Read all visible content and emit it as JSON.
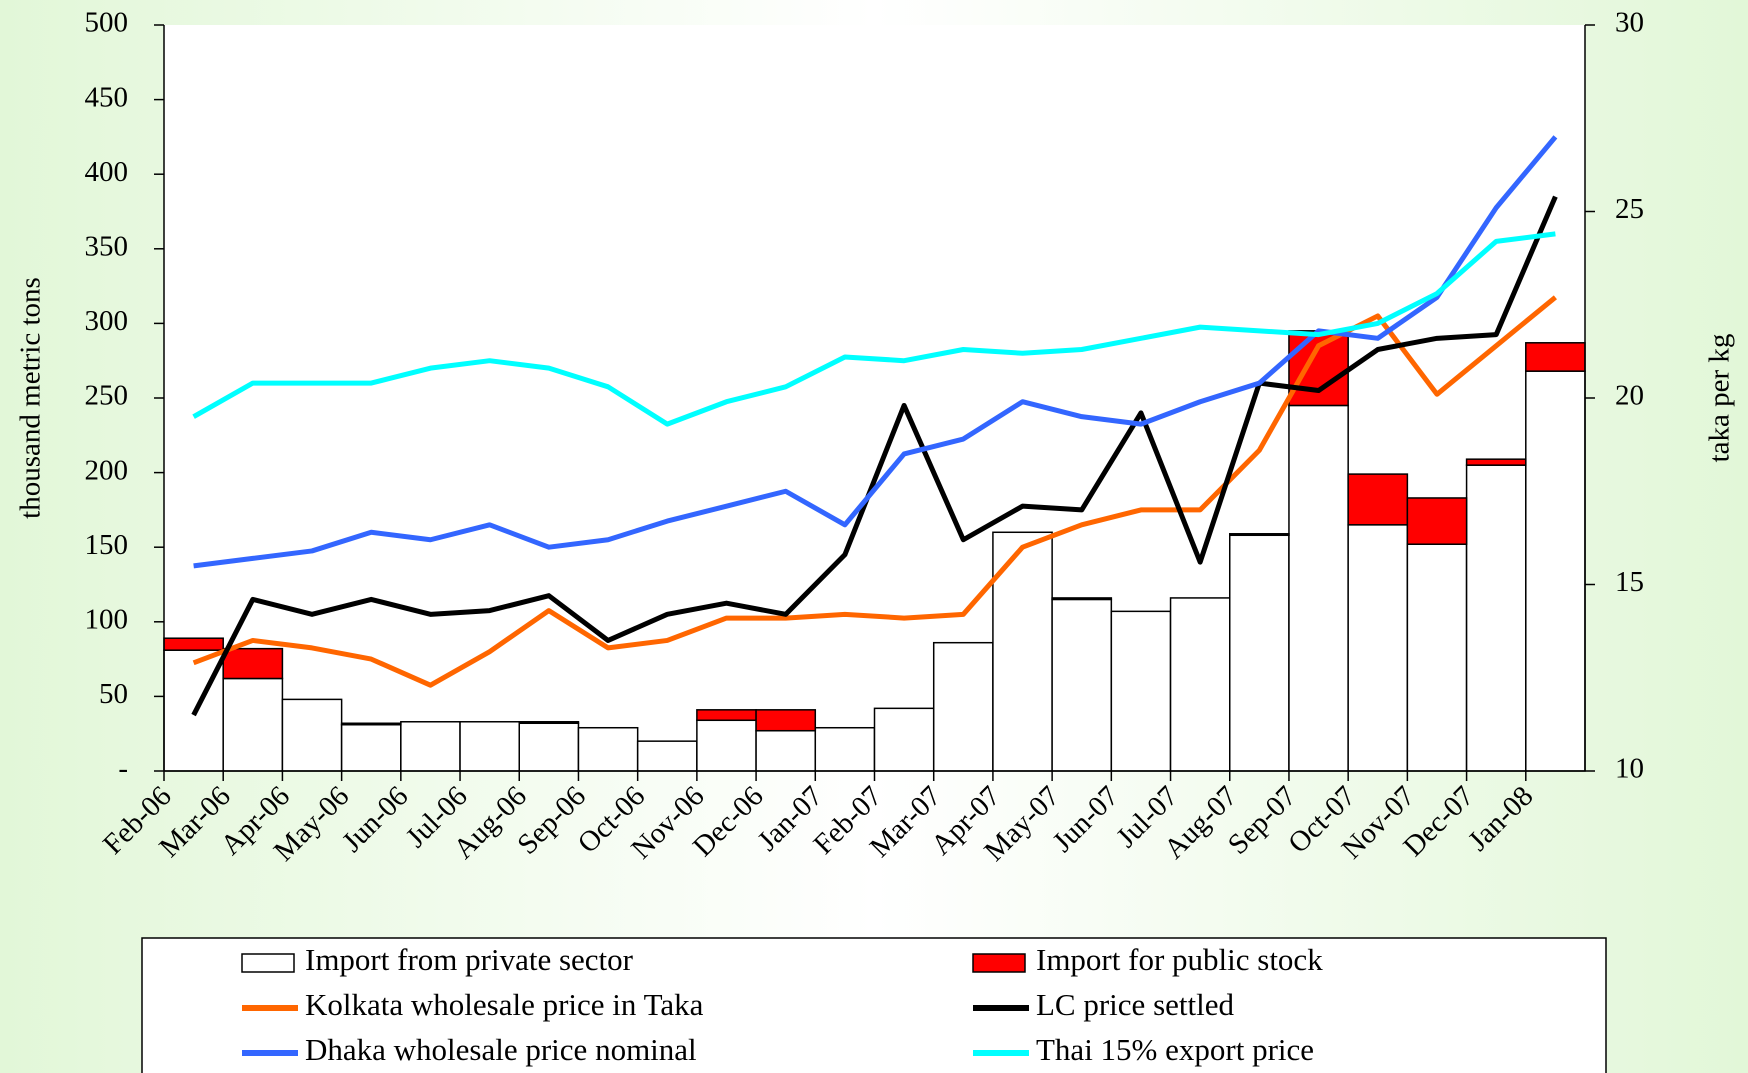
{
  "chart_data": {
    "type": "bar",
    "stacked": true,
    "categories": [
      "Feb-06",
      "Mar-06",
      "Apr-06",
      "May-06",
      "Jun-06",
      "Jul-06",
      "Aug-06",
      "Sep-06",
      "Oct-06",
      "Nov-06",
      "Dec-06",
      "Jan-07",
      "Feb-07",
      "Mar-07",
      "Apr-07",
      "May-07",
      "Jun-07",
      "Jul-07",
      "Aug-07",
      "Sep-07",
      "Oct-07",
      "Nov-07",
      "Dec-07",
      "Jan-08"
    ],
    "ylabel": "thousand metric tons",
    "y2label": "taka per kg",
    "ylim": [
      0,
      500
    ],
    "yticks": [
      {
        "value": 0,
        "label": "-"
      },
      50,
      100,
      150,
      200,
      250,
      300,
      350,
      400,
      450,
      500
    ],
    "y2lim": [
      10,
      30
    ],
    "y2ticks": [
      10,
      15,
      20,
      25,
      30
    ],
    "series": [
      {
        "name": "Import from private sector",
        "type": "bar",
        "color": "#ffffff",
        "values": [
          81,
          62,
          48,
          31,
          33,
          33,
          32,
          29,
          20,
          34,
          27,
          29,
          42,
          86,
          160,
          115,
          107,
          116,
          158,
          245,
          165,
          152,
          205,
          268
        ]
      },
      {
        "name": "Import for public stock",
        "type": "bar",
        "color": "#ff0000",
        "values": [
          8,
          20,
          0,
          1,
          0,
          0,
          1,
          0,
          0,
          7,
          14,
          0,
          0,
          0,
          0,
          1,
          0,
          0,
          1,
          50,
          34,
          31,
          4,
          19
        ]
      },
      {
        "name": "Kolkata wholesale price in Taka",
        "type": "line",
        "axis": "y2",
        "color": "#ff6600",
        "values": [
          12.9,
          13.5,
          13.3,
          13.0,
          12.3,
          13.2,
          14.3,
          13.3,
          13.5,
          14.1,
          14.1,
          14.2,
          14.1,
          14.2,
          16.0,
          16.6,
          17.0,
          17.0,
          18.6,
          21.4,
          22.2,
          20.1,
          21.4,
          22.7
        ]
      },
      {
        "name": "LC price settled",
        "type": "line",
        "axis": "y2",
        "color": "#000000",
        "values": [
          11.5,
          14.6,
          14.2,
          14.6,
          14.2,
          14.3,
          14.7,
          13.5,
          14.2,
          14.5,
          14.2,
          15.8,
          19.8,
          16.2,
          17.1,
          17.0,
          19.6,
          15.6,
          20.4,
          20.2,
          21.3,
          21.6,
          21.7,
          25.4
        ]
      },
      {
        "name": "Dhaka wholesale price nominal",
        "type": "line",
        "axis": "y2",
        "color": "#3366ff",
        "values": [
          15.5,
          15.7,
          15.9,
          16.4,
          16.2,
          16.6,
          16.0,
          16.2,
          16.7,
          17.1,
          17.5,
          16.6,
          18.5,
          18.9,
          19.9,
          19.5,
          19.3,
          19.9,
          20.4,
          21.8,
          21.6,
          22.7,
          25.1,
          27.0
        ]
      },
      {
        "name": "Thai 15% export price",
        "type": "line",
        "axis": "y2",
        "color": "#00ffff",
        "values": [
          19.5,
          20.4,
          20.4,
          20.4,
          20.8,
          21.0,
          20.8,
          20.3,
          19.3,
          19.9,
          20.3,
          21.1,
          21.0,
          21.3,
          21.2,
          21.3,
          21.6,
          21.9,
          21.8,
          21.7,
          22.0,
          22.8,
          24.2,
          24.4
        ]
      }
    ]
  }
}
